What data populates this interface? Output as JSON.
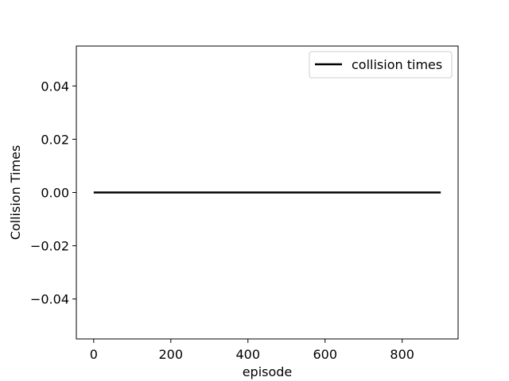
{
  "chart_data": {
    "type": "line",
    "title": "",
    "xlabel": "episode",
    "ylabel": "Collision Times",
    "xlim": [
      -45,
      945
    ],
    "ylim": [
      -0.055,
      0.055
    ],
    "x_ticks": [
      0,
      200,
      400,
      600,
      800
    ],
    "x_tick_labels": [
      "0",
      "200",
      "400",
      "600",
      "800"
    ],
    "y_ticks": [
      0.04,
      0.02,
      0.0,
      -0.02,
      -0.04
    ],
    "y_tick_labels": [
      "0.04",
      "0.02",
      "0.00",
      "−0.02",
      "−0.04"
    ],
    "grid": false,
    "legend_position": "top-right",
    "series": [
      {
        "name": "collision times",
        "color": "#000000",
        "x": [
          0,
          900
        ],
        "y": [
          0,
          0
        ]
      }
    ]
  }
}
